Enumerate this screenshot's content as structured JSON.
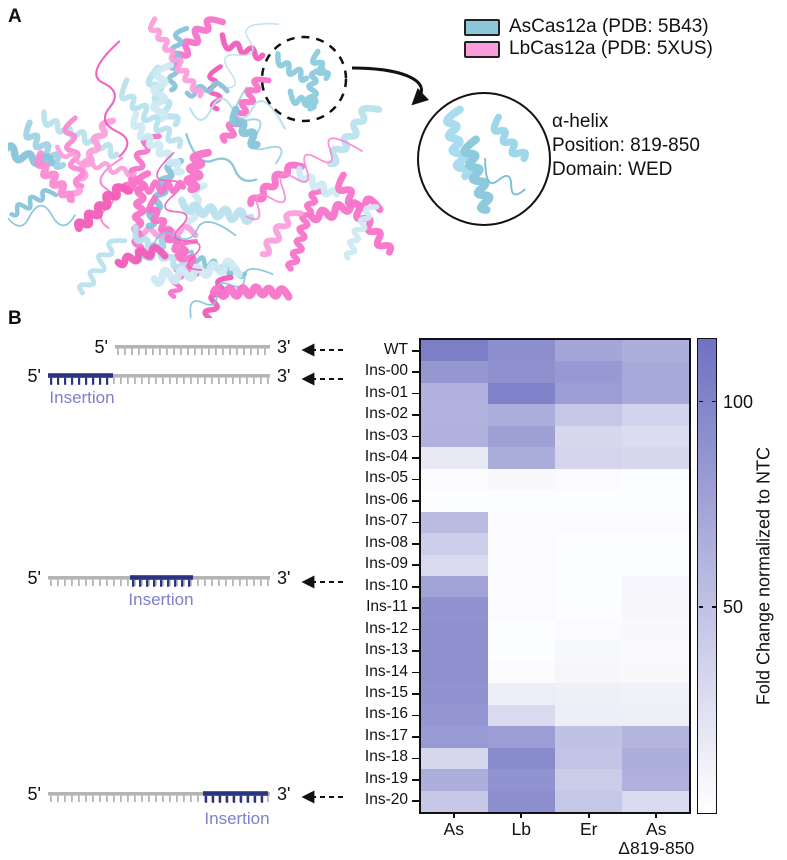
{
  "panel_a": {
    "label": "A",
    "legend": [
      {
        "label": "AsCas12a (PDB: 5B43)",
        "color": "#8cc7dc"
      },
      {
        "label": "LbCas12a (PDB: 5XUS)",
        "color": "#fb9ddb"
      }
    ],
    "inset": {
      "title": "α-helix",
      "position": "Position: 819-850",
      "domain": "Domain: WED"
    },
    "ribbon_pink": [
      "#f873c9",
      "#fa8ad3",
      "#f25cb9",
      "#fc9fdb"
    ],
    "ribbon_blue": [
      "#9ed3e5",
      "#b9e1ee",
      "#87c4da",
      "#cdeaf3"
    ]
  },
  "panel_b": {
    "label": "B",
    "strand": {
      "five_prime": "5'",
      "three_prime": "3'",
      "insertion_label": "Insertion",
      "gray_color": "#b5b5b5",
      "insertion_color": "#2b3480",
      "insertion_text_color": "#7d80cb"
    },
    "schematic_targets": [
      "WT",
      "Ins-00",
      "Ins-10",
      "Ins-20"
    ]
  },
  "chart_data": {
    "type": "heatmap",
    "title": "",
    "rows": [
      "WT",
      "Ins-00",
      "Ins-01",
      "Ins-02",
      "Ins-03",
      "Ins-04",
      "Ins-05",
      "Ins-06",
      "Ins-07",
      "Ins-08",
      "Ins-09",
      "Ins-10",
      "Ins-11",
      "Ins-12",
      "Ins-13",
      "Ins-14",
      "Ins-15",
      "Ins-16",
      "Ins-17",
      "Ins-18",
      "Ins-19",
      "Ins-20"
    ],
    "columns": [
      "As",
      "Lb",
      "Er",
      "As Δ819-850"
    ],
    "values": [
      [
        105,
        92,
        73,
        66
      ],
      [
        85,
        90,
        83,
        70
      ],
      [
        63,
        102,
        80,
        70
      ],
      [
        62,
        67,
        46,
        36
      ],
      [
        63,
        77,
        32,
        28
      ],
      [
        18,
        68,
        34,
        32
      ],
      [
        3,
        5,
        3,
        2
      ],
      [
        2,
        2,
        2,
        2
      ],
      [
        55,
        3,
        3,
        3
      ],
      [
        40,
        3,
        2,
        2
      ],
      [
        30,
        3,
        2,
        2
      ],
      [
        75,
        3,
        2,
        8
      ],
      [
        88,
        3,
        2,
        7
      ],
      [
        90,
        2,
        3,
        5
      ],
      [
        90,
        2,
        6,
        4
      ],
      [
        90,
        3,
        7,
        5
      ],
      [
        88,
        15,
        13,
        11
      ],
      [
        86,
        30,
        14,
        13
      ],
      [
        82,
        80,
        50,
        60
      ],
      [
        33,
        95,
        48,
        66
      ],
      [
        66,
        88,
        42,
        64
      ],
      [
        45,
        92,
        46,
        30
      ]
    ],
    "colorbar": {
      "label": "Fold Change normalized to NTC",
      "ticks": [
        50,
        100
      ],
      "vmin": 0,
      "vmax": 115,
      "color_low": "#ffffff",
      "color_high": "#6f72c1"
    },
    "legend_position": "right",
    "grid": false
  }
}
